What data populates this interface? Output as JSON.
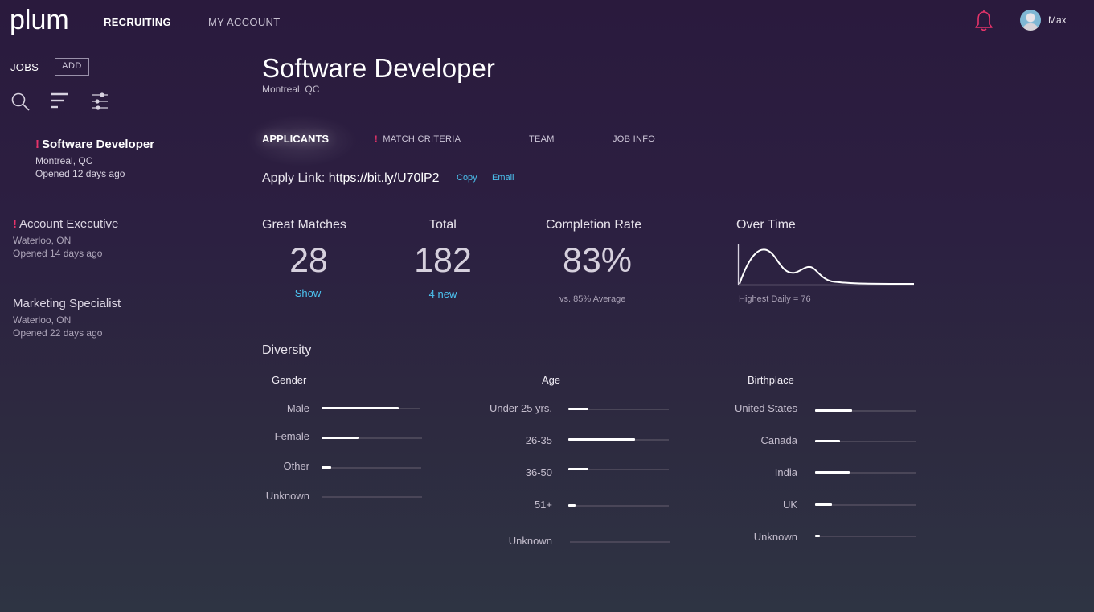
{
  "app": {
    "logo": "plum",
    "nav": {
      "recruiting": "RECRUITING",
      "my_account": "MY ACCOUNT"
    },
    "user": {
      "name": "Max"
    },
    "accent_color": "#e6336a",
    "link_color": "#4cc3f0"
  },
  "sidebar": {
    "jobs_label": "JOBS",
    "add_label": "ADD",
    "icons": [
      "search-icon",
      "sort-icon",
      "filter-sliders-icon"
    ],
    "jobs": [
      {
        "title": "Software Developer",
        "location": "Montreal, QC",
        "opened": "Opened 12 days ago",
        "alert": true,
        "selected": true
      },
      {
        "title": "Account Executive",
        "location": "Waterloo, ON",
        "opened": "Opened 14 days ago",
        "alert": true,
        "selected": false
      },
      {
        "title": "Marketing Specialist",
        "location": "Waterloo, ON",
        "opened": "Opened 22 days ago",
        "alert": false,
        "selected": false
      }
    ]
  },
  "job": {
    "title": "Software Developer",
    "location": "Montreal, QC",
    "tabs": [
      {
        "label": "APPLICANTS",
        "active": true
      },
      {
        "label": "MATCH CRITERIA",
        "alert": true
      },
      {
        "label": "TEAM"
      },
      {
        "label": "JOB INFO"
      }
    ],
    "apply_label": "Apply Link:",
    "apply_url": "https://bit.ly/U70lP2",
    "copy_label": "Copy",
    "email_label": "Email"
  },
  "stats": {
    "great_matches": {
      "title": "Great Matches",
      "value": "28",
      "link": "Show"
    },
    "total": {
      "title": "Total",
      "value": "182",
      "link": "4 new"
    },
    "completion": {
      "title": "Completion Rate",
      "value": "83%",
      "note": "vs. 85% Average"
    },
    "over_time": {
      "title": "Over Time",
      "note": "Highest Daily = 76"
    }
  },
  "diversity": {
    "title": "Diversity",
    "gender": {
      "title": "Gender",
      "rows": [
        {
          "label": "Male",
          "fraction": 0.78
        },
        {
          "label": "Female",
          "fraction": 0.37
        },
        {
          "label": "Other",
          "fraction": 0.1
        },
        {
          "label": "Unknown",
          "fraction": 0.0
        }
      ]
    },
    "age": {
      "title": "Age",
      "rows": [
        {
          "label": "Under 25 yrs.",
          "fraction": 0.2
        },
        {
          "label": "26-35",
          "fraction": 0.66
        },
        {
          "label": "36-50",
          "fraction": 0.2
        },
        {
          "label": "51+",
          "fraction": 0.07
        },
        {
          "label": "Unknown",
          "fraction": 0.0
        }
      ]
    },
    "birthplace": {
      "title": "Birthplace",
      "rows": [
        {
          "label": "United States",
          "fraction": 0.37
        },
        {
          "label": "Canada",
          "fraction": 0.25
        },
        {
          "label": "India",
          "fraction": 0.34
        },
        {
          "label": "UK",
          "fraction": 0.17
        },
        {
          "label": "Unknown",
          "fraction": 0.05
        }
      ]
    }
  }
}
